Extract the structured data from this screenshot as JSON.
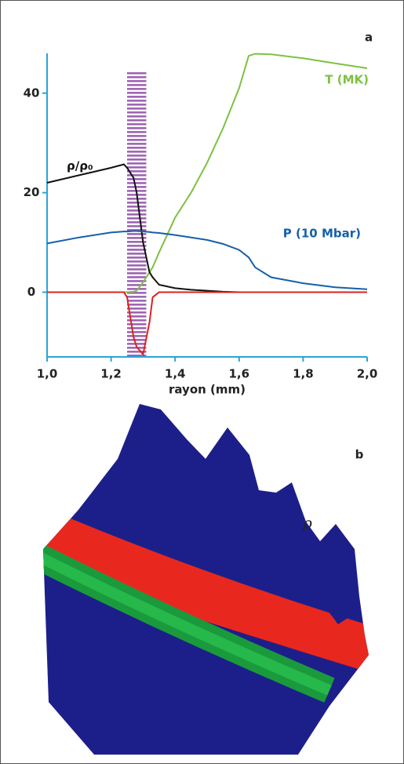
{
  "chart_data": {
    "type": "line",
    "panel_label": "a",
    "xlabel": "rayon (mm)",
    "x": [
      1.0,
      1.1,
      1.2,
      1.24,
      1.25,
      1.27,
      1.28,
      1.3,
      1.32,
      1.33,
      1.35,
      1.4,
      1.45,
      1.5,
      1.55,
      1.6,
      1.63,
      1.65,
      1.7,
      1.8,
      1.9,
      2.0
    ],
    "series": [
      {
        "name": "T (MK)",
        "color": "#7dc242",
        "values": [
          0,
          0,
          0,
          0,
          0,
          0.1,
          0.3,
          2,
          4,
          5,
          8,
          15,
          20,
          26,
          33,
          41,
          47.5,
          47.9,
          47.8,
          47,
          46,
          45
        ]
      },
      {
        "name": "ρ/ρ₀",
        "color": "#111111",
        "values": [
          22,
          23.5,
          25,
          25.7,
          25,
          23,
          20,
          10,
          4,
          3,
          1.5,
          0.8,
          0.5,
          0.3,
          0.1,
          0,
          0,
          0,
          null,
          null,
          null,
          null
        ]
      },
      {
        "name": "P (10 Mbar)",
        "color": "#1560a8",
        "values": [
          9.8,
          11,
          12,
          12.2,
          12.2,
          12.3,
          12.3,
          12.2,
          12.1,
          12,
          11.9,
          11.5,
          11,
          10.5,
          9.7,
          8.5,
          7,
          5,
          3,
          1.8,
          1,
          0.6
        ]
      },
      {
        "color": "#e02020",
        "values": [
          0,
          0,
          0,
          0,
          -1,
          -9,
          -11,
          -12.5,
          -6,
          -1,
          0,
          0,
          0,
          0,
          0,
          0,
          0,
          0,
          0,
          0,
          0,
          0
        ]
      }
    ],
    "shaded_region": {
      "x": [
        1.25,
        1.31
      ],
      "top": 44,
      "color": "#9b5fb0"
    },
    "xlim": [
      1.0,
      2.0
    ],
    "ylim": [
      -13,
      48
    ],
    "xticks": [
      {
        "value": 1.0,
        "label": "1,0"
      },
      {
        "value": 1.2,
        "label": "1,2"
      },
      {
        "value": 1.4,
        "label": "1,4"
      },
      {
        "value": 1.6,
        "label": "1,6"
      },
      {
        "value": 1.8,
        "label": "1,8"
      },
      {
        "value": 2.0,
        "label": "2,0"
      }
    ],
    "yticks": [
      0,
      20,
      40
    ]
  },
  "panel_b": {
    "label": "b",
    "annotation": "ρ"
  }
}
